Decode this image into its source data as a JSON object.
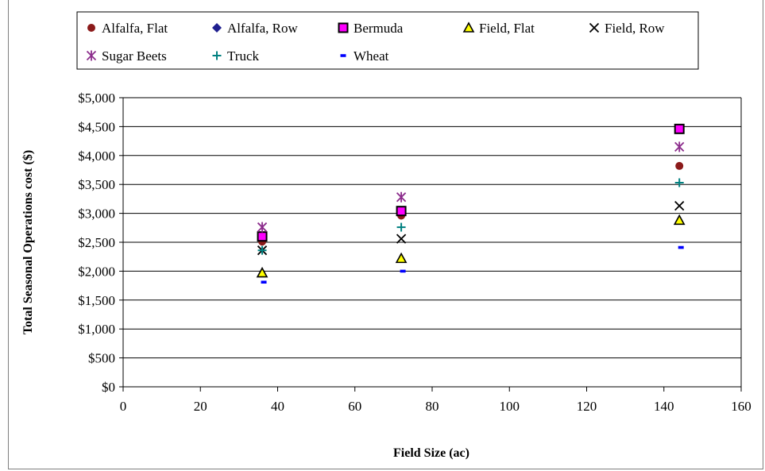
{
  "chart_data": {
    "type": "scatter",
    "title": "",
    "xlabel": "Field Size (ac)",
    "ylabel": "Total Seasonal Operations cost ($)",
    "xlim": [
      0,
      160
    ],
    "ylim": [
      0,
      5000
    ],
    "x_ticks": [
      0,
      20,
      40,
      60,
      80,
      100,
      120,
      140,
      160
    ],
    "y_ticks": [
      0,
      500,
      1000,
      1500,
      2000,
      2500,
      3000,
      3500,
      4000,
      4500,
      5000
    ],
    "y_tick_labels": [
      "$0",
      "$500",
      "$1,000",
      "$1,500",
      "$2,000",
      "$2,500",
      "$3,000",
      "$3,500",
      "$4,000",
      "$4,500",
      "$5,000"
    ],
    "grid": "horizontal",
    "legend_position": "top",
    "series": [
      {
        "name": "Alfalfa, Flat",
        "marker": "circle",
        "color": "#8b1a1a",
        "x": [
          36,
          72,
          144
        ],
        "y": [
          2510,
          2960,
          3820
        ]
      },
      {
        "name": "Alfalfa, Row",
        "marker": "diamond",
        "color": "#1f1f8f",
        "x": [
          36,
          72,
          144
        ],
        "y": [
          2600,
          3040,
          4460
        ]
      },
      {
        "name": "Bermuda",
        "marker": "square",
        "color": "#ff00ff",
        "x": [
          36,
          72,
          144
        ],
        "y": [
          2600,
          3040,
          4460
        ]
      },
      {
        "name": "Field, Flat",
        "marker": "triangle",
        "color": "#ffff00",
        "x": [
          36,
          72,
          144
        ],
        "y": [
          1970,
          2220,
          2880
        ]
      },
      {
        "name": "Field, Row",
        "marker": "x",
        "color": "#000000",
        "x": [
          36,
          72,
          144
        ],
        "y": [
          2360,
          2560,
          3130
        ]
      },
      {
        "name": "Sugar Beets",
        "marker": "star",
        "color": "#8b2b8b",
        "x": [
          36,
          72,
          144
        ],
        "y": [
          2760,
          3280,
          4150
        ]
      },
      {
        "name": "Truck",
        "marker": "plus",
        "color": "#008080",
        "x": [
          36,
          72,
          144
        ],
        "y": [
          2360,
          2760,
          3530
        ]
      },
      {
        "name": "Wheat",
        "marker": "dash",
        "color": "#0000ff",
        "x": [
          36,
          72,
          144
        ],
        "y": [
          1810,
          2000,
          2410
        ]
      }
    ]
  }
}
